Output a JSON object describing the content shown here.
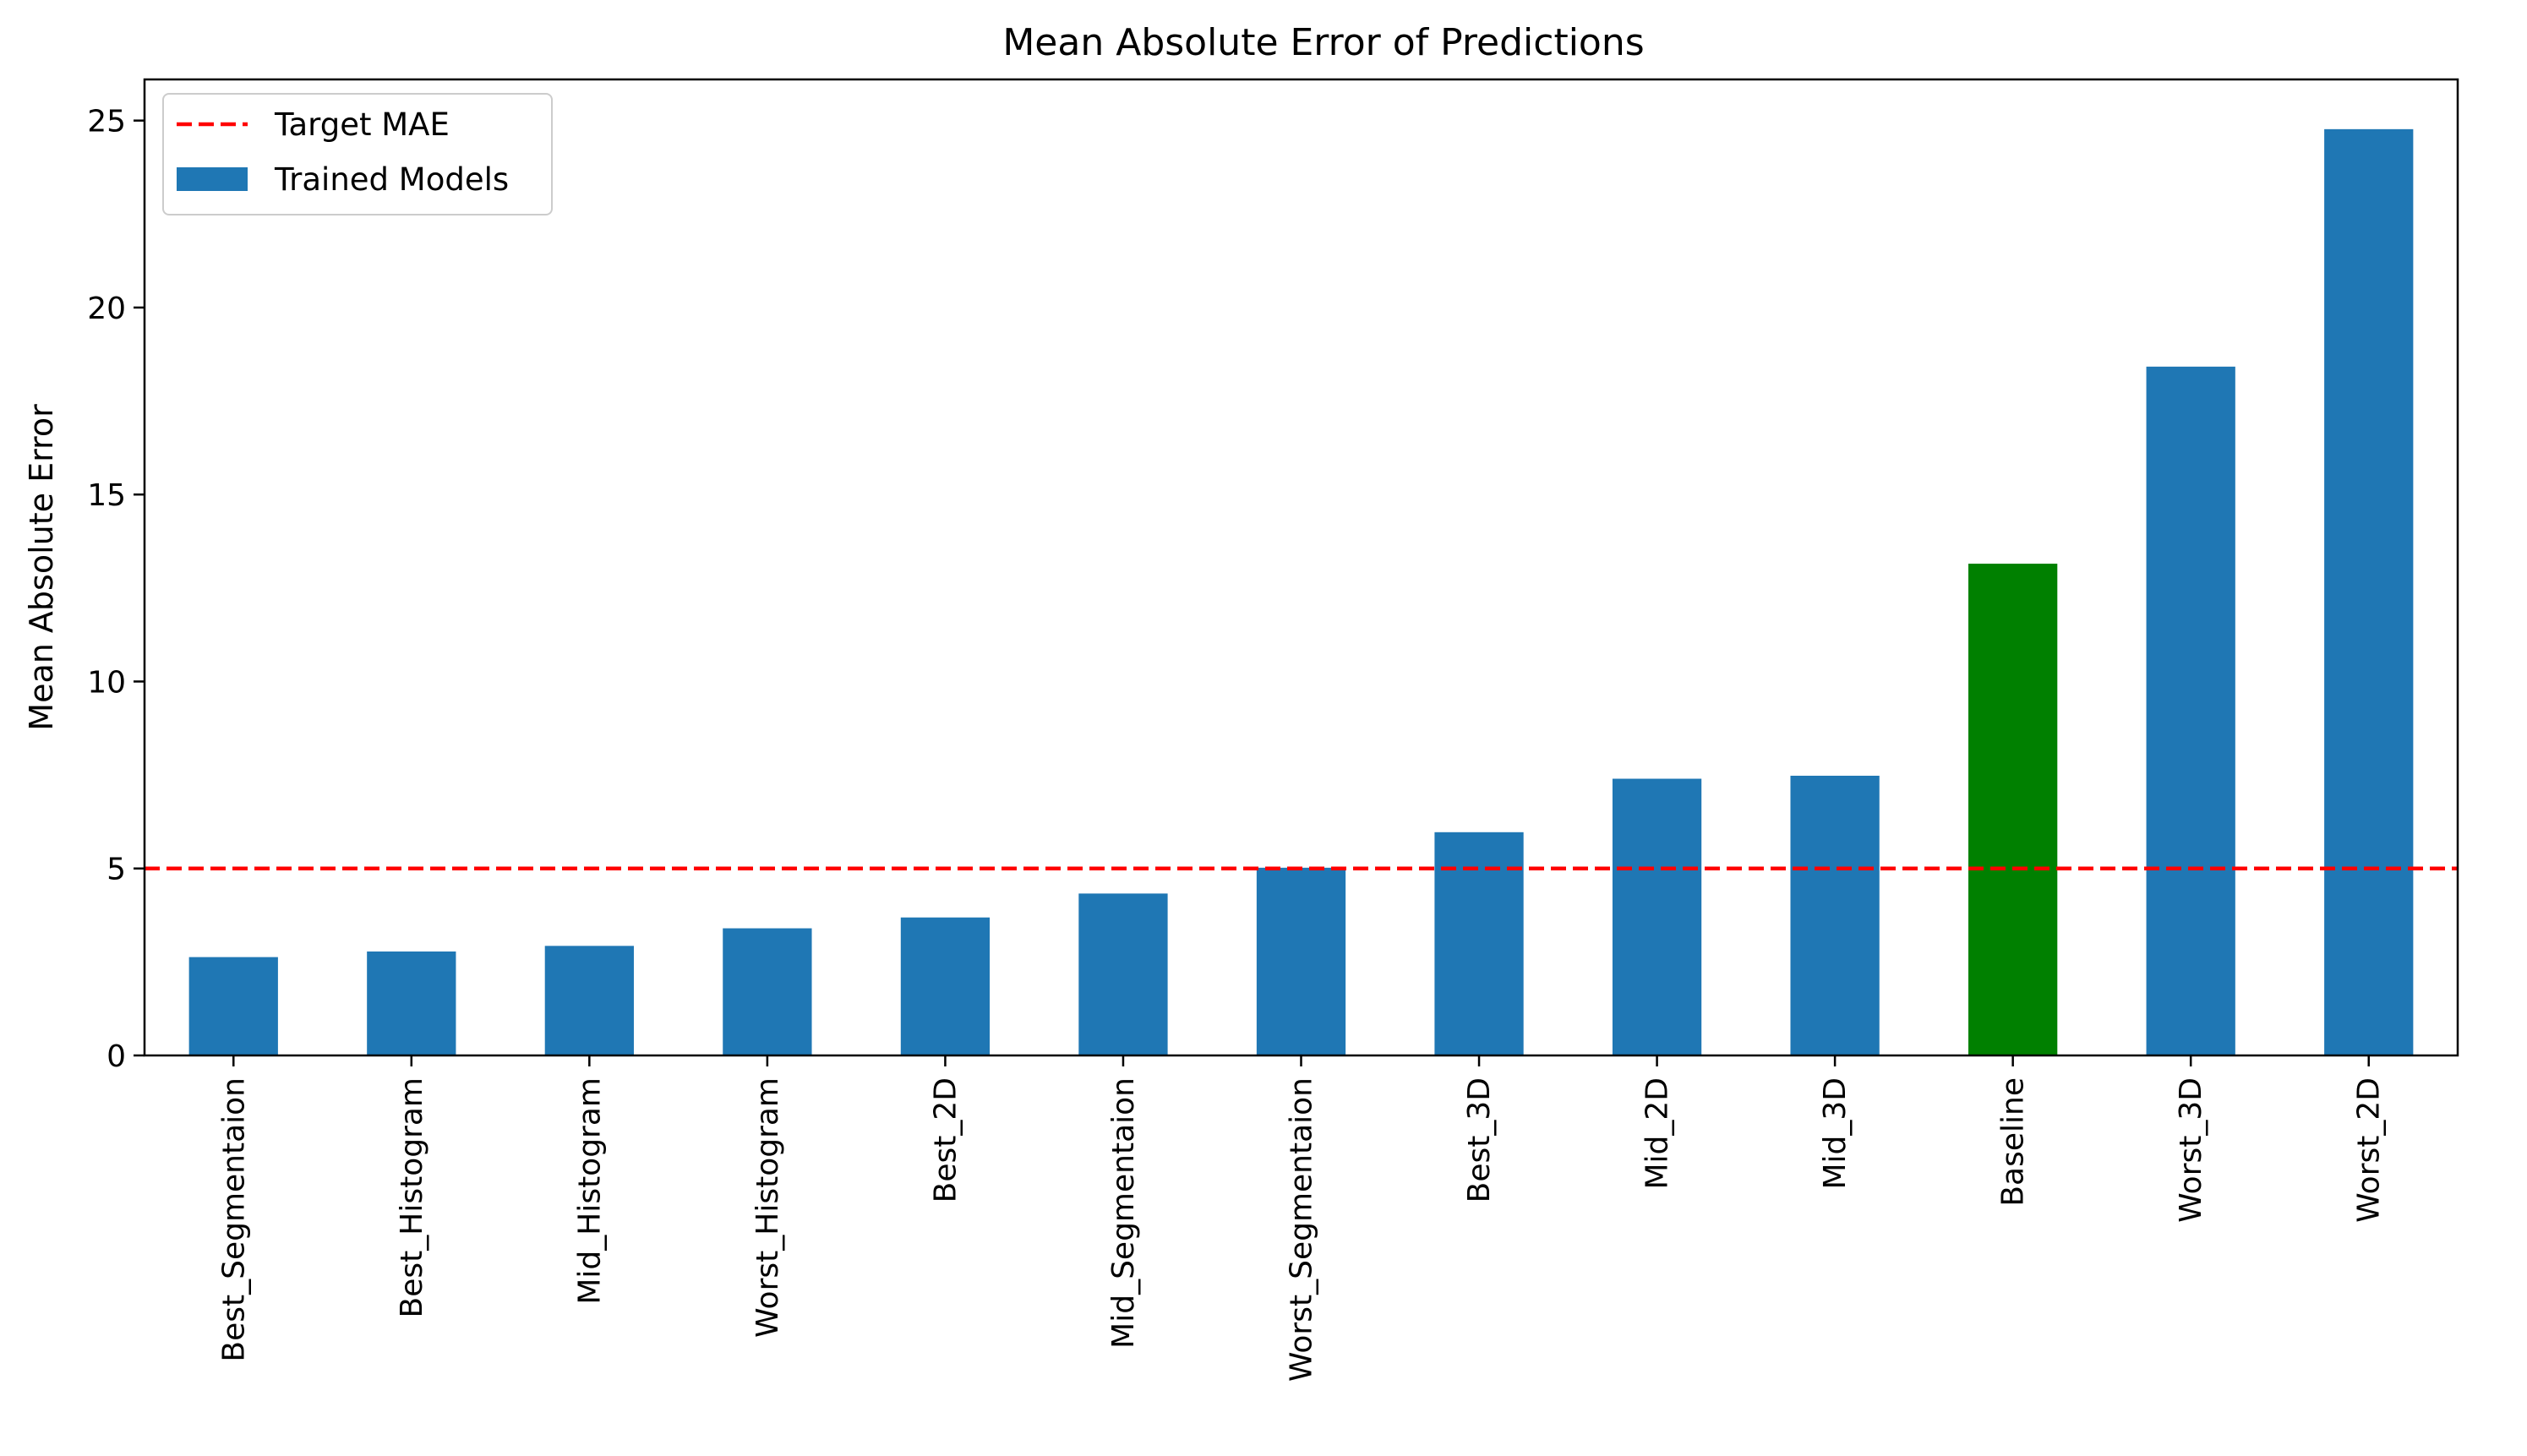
{
  "chart_data": {
    "type": "bar",
    "title": "Mean Absolute Error of Predictions",
    "xlabel": "",
    "ylabel": "Mean Absolute Error",
    "categories": [
      "Best_Segmentaion",
      "Best_Histogram",
      "Mid_Histogram",
      "Worst_Histogram",
      "Best_2D",
      "Mid_Segmentaion",
      "Worst_Segmentaion",
      "Best_3D",
      "Mid_2D",
      "Mid_3D",
      "Baseline",
      "Worst_3D",
      "Worst_2D"
    ],
    "values": [
      2.63,
      2.78,
      2.93,
      3.4,
      3.69,
      4.33,
      5.02,
      5.97,
      7.4,
      7.48,
      13.15,
      18.42,
      24.77
    ],
    "bar_colors": [
      "#1f77b4",
      "#1f77b4",
      "#1f77b4",
      "#1f77b4",
      "#1f77b4",
      "#1f77b4",
      "#1f77b4",
      "#1f77b4",
      "#1f77b4",
      "#1f77b4",
      "#008000",
      "#1f77b4",
      "#1f77b4"
    ],
    "ylim": [
      0,
      26.1
    ],
    "yticks": [
      0,
      5,
      10,
      15,
      20,
      25
    ],
    "reference_line": {
      "name": "Target MAE",
      "value": 5,
      "color": "#ff0000",
      "style": "dashed"
    },
    "legend": {
      "placement": "top-left",
      "entries": [
        {
          "label": "Target MAE",
          "kind": "dashed-line",
          "color": "#ff0000"
        },
        {
          "label": "Trained Models",
          "kind": "patch",
          "color": "#1f77b4"
        }
      ]
    },
    "grid": false
  }
}
